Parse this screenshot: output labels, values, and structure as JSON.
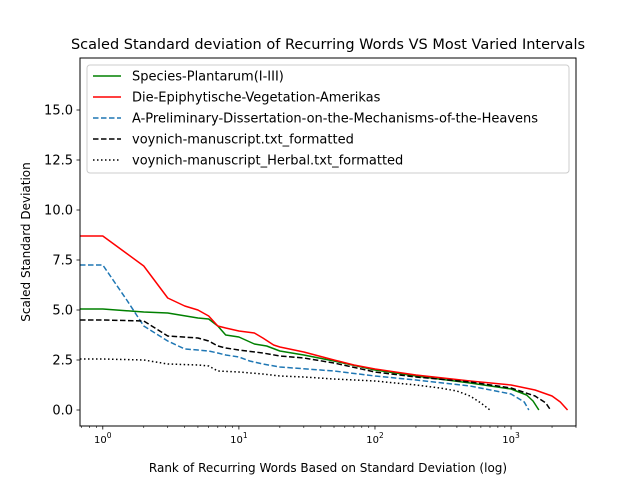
{
  "chart_data": {
    "type": "line",
    "title": "Scaled Standard deviation of Recurring Words VS Most Varied Intervals",
    "xlabel": "Rank of Recurring Words Based on Standard Deviation (log)",
    "ylabel": "Scaled Standard Deviation",
    "xscale": "log",
    "xlim": [
      0.68,
      3000
    ],
    "ylim": [
      -0.8,
      17.6
    ],
    "x_major_ticks": [
      {
        "value": 1,
        "label": "10^0"
      },
      {
        "value": 10,
        "label": "10^1"
      },
      {
        "value": 100,
        "label": "10^2"
      },
      {
        "value": 1000,
        "label": "10^3"
      }
    ],
    "y_ticks": [
      {
        "value": 0.0,
        "label": "0.0"
      },
      {
        "value": 2.5,
        "label": "2.5"
      },
      {
        "value": 5.0,
        "label": "5.0"
      },
      {
        "value": 7.5,
        "label": "7.5"
      },
      {
        "value": 10.0,
        "label": "10.0"
      },
      {
        "value": 12.5,
        "label": "12.5"
      },
      {
        "value": 15.0,
        "label": "15.0"
      }
    ],
    "grid": false,
    "legend_position": "top-left",
    "series": [
      {
        "name": "Species-Plantarum(I-III)",
        "color": "#008000",
        "dash": "solid",
        "x": [
          0.68,
          1,
          2,
          3,
          5,
          6,
          7,
          8,
          10,
          13,
          16,
          20,
          30,
          50,
          100,
          200,
          500,
          1000,
          1300,
          1450,
          1600
        ],
        "y": [
          5.05,
          5.05,
          4.9,
          4.85,
          4.6,
          4.55,
          4.2,
          3.75,
          3.65,
          3.3,
          3.2,
          2.95,
          2.75,
          2.45,
          2.0,
          1.7,
          1.35,
          1.05,
          0.75,
          0.45,
          0.0
        ]
      },
      {
        "name": "Die-Epiphytische-Vegetation-Amerikas",
        "color": "#ff0000",
        "dash": "solid",
        "x": [
          0.68,
          1,
          2,
          3,
          4,
          5,
          6,
          7,
          8,
          10,
          13,
          15,
          18,
          20,
          30,
          50,
          70,
          100,
          200,
          500,
          1000,
          1500,
          2000,
          2300,
          2600
        ],
        "y": [
          8.7,
          8.7,
          7.2,
          5.6,
          5.2,
          5.0,
          4.7,
          4.2,
          4.1,
          3.95,
          3.85,
          3.6,
          3.25,
          3.15,
          2.9,
          2.5,
          2.25,
          2.05,
          1.75,
          1.45,
          1.25,
          1.0,
          0.7,
          0.4,
          0.0
        ]
      },
      {
        "name": "A-Preliminary-Dissertation-on-the-Mechanisms-of-the-Heavens",
        "color": "#1f77b4",
        "dash": "dashed",
        "x": [
          0.68,
          1,
          1.5,
          2,
          3,
          4,
          5,
          6,
          7,
          8,
          10,
          12,
          15,
          20,
          50,
          100,
          200,
          500,
          1000,
          1250,
          1350
        ],
        "y": [
          7.25,
          7.25,
          5.5,
          4.2,
          3.45,
          3.05,
          3.0,
          2.95,
          2.85,
          2.75,
          2.65,
          2.45,
          2.3,
          2.15,
          1.95,
          1.7,
          1.5,
          1.2,
          0.8,
          0.4,
          0.0
        ]
      },
      {
        "name": "voynich-manuscript.txt_formatted",
        "color": "#000000",
        "dash": "dashed",
        "x": [
          0.68,
          1,
          2,
          3,
          5,
          6,
          7,
          8,
          10,
          15,
          20,
          30,
          50,
          100,
          200,
          500,
          1000,
          1500,
          1800,
          1950
        ],
        "y": [
          4.5,
          4.5,
          4.45,
          3.7,
          3.6,
          3.45,
          3.2,
          3.1,
          3.0,
          2.85,
          2.7,
          2.6,
          2.35,
          1.9,
          1.65,
          1.4,
          1.1,
          0.7,
          0.35,
          0.0
        ]
      },
      {
        "name": "voynich-manuscript_Herbal.txt_formatted",
        "color": "#000000",
        "dash": "dotted",
        "x": [
          0.68,
          1,
          2,
          3,
          5,
          6,
          7,
          10,
          15,
          20,
          30,
          50,
          100,
          200,
          300,
          400,
          500,
          600,
          700
        ],
        "y": [
          2.55,
          2.55,
          2.5,
          2.3,
          2.25,
          2.2,
          1.95,
          1.9,
          1.8,
          1.7,
          1.65,
          1.55,
          1.45,
          1.25,
          1.1,
          0.95,
          0.7,
          0.35,
          0.0
        ]
      }
    ]
  }
}
